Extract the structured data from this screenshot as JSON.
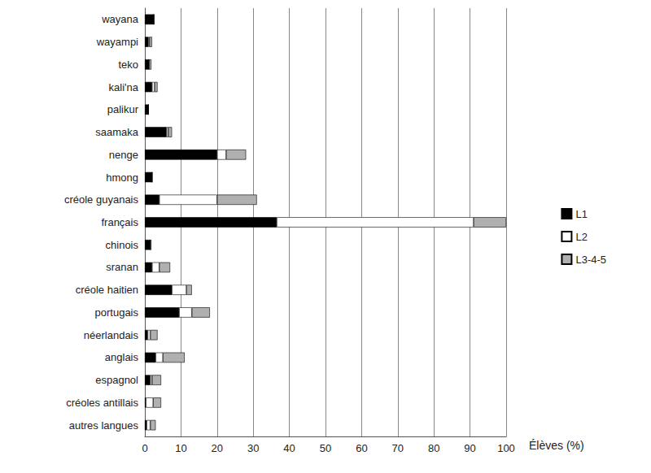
{
  "chart_data": {
    "type": "bar",
    "orientation": "horizontal",
    "stacked": true,
    "grid": true,
    "legend": "right",
    "xlabel": "Élèves (%)",
    "categories": [
      "wayana",
      "wayampi",
      "teko",
      "kali'na",
      "palikur",
      "saamaka",
      "nenge",
      "hmong",
      "créole guyanais",
      "français",
      "chinois",
      "sranan",
      "créole haitien",
      "portugais",
      "néerlandais",
      "anglais",
      "espagnol",
      "créoles antillais",
      "autres langues"
    ],
    "series": [
      {
        "name": "L1",
        "color": "#000000",
        "values": [
          2.5,
          1,
          1.2,
          2,
          1,
          6,
          20,
          2,
          4,
          36.5,
          1.5,
          2,
          7.5,
          9.5,
          0.8,
          3,
          1.5,
          0.3,
          0.5
        ]
      },
      {
        "name": "L2",
        "color": "#ffffff",
        "values": [
          0,
          0.3,
          0,
          0.7,
          0,
          0.5,
          2.5,
          0,
          16,
          54.5,
          0,
          2,
          4,
          3.5,
          0.7,
          2,
          0.5,
          2,
          1
        ]
      },
      {
        "name": "L3-4-5",
        "color": "#b0b0b0",
        "values": [
          0,
          0.7,
          0.6,
          0.8,
          0,
          1,
          5.5,
          0,
          11,
          9,
          0.3,
          3,
          1.5,
          5,
          2,
          6,
          2.5,
          2.2,
          1.5
        ]
      }
    ],
    "xlim": [
      0,
      100
    ],
    "xticks": [
      0,
      10,
      20,
      30,
      40,
      50,
      60,
      70,
      80,
      90,
      100
    ]
  }
}
